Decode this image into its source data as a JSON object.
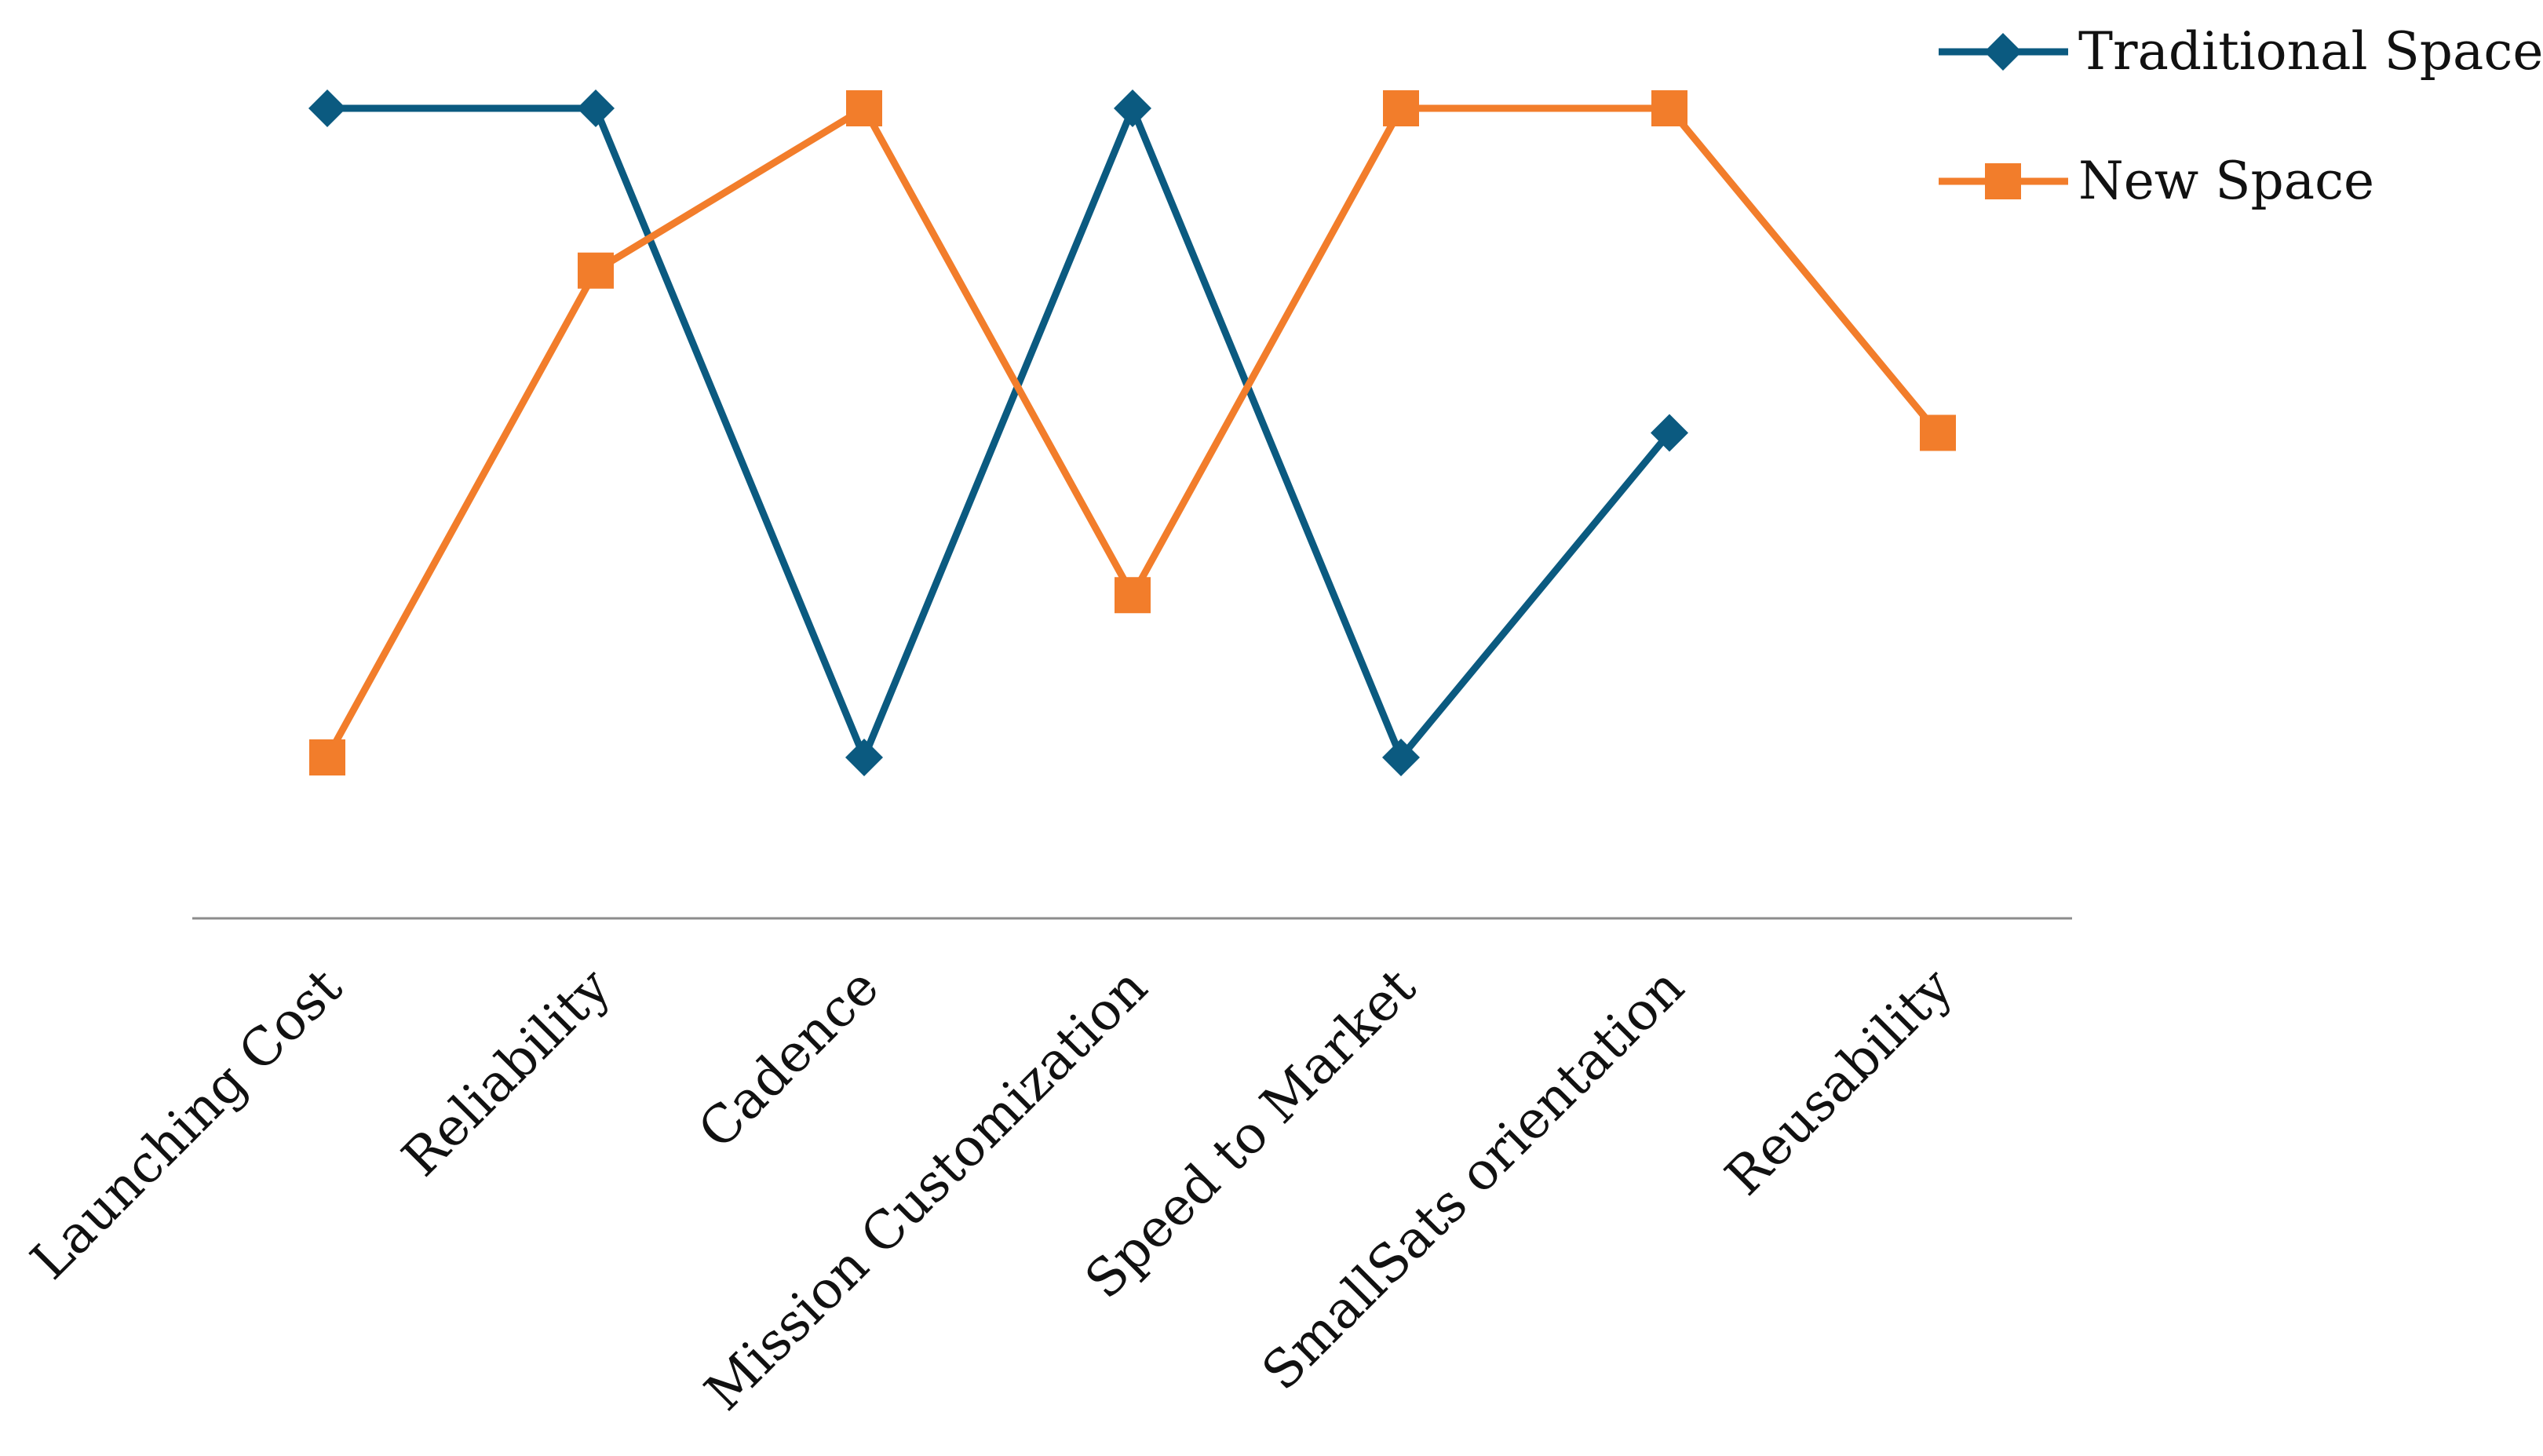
{
  "chart_data": {
    "type": "line",
    "categories": [
      "Launching Cost",
      "Reliability",
      "Cadence",
      "Mission Customization",
      "Speed to Market",
      "SmallSats orientation",
      "Reusability"
    ],
    "series": [
      {
        "name": "Traditional Space",
        "color": "#0b5a80",
        "marker": "diamond",
        "values": [
          5,
          5,
          1,
          5,
          1,
          3,
          null
        ]
      },
      {
        "name": "New Space",
        "color": "#f27d2b",
        "marker": "square",
        "values": [
          1,
          4,
          5,
          2,
          5,
          5,
          3
        ]
      }
    ],
    "ylim": [
      0,
      5
    ],
    "grid": false,
    "y_axis_visible": false,
    "legend_position": "top-right",
    "xlabel": "",
    "ylabel": "",
    "title": ""
  }
}
